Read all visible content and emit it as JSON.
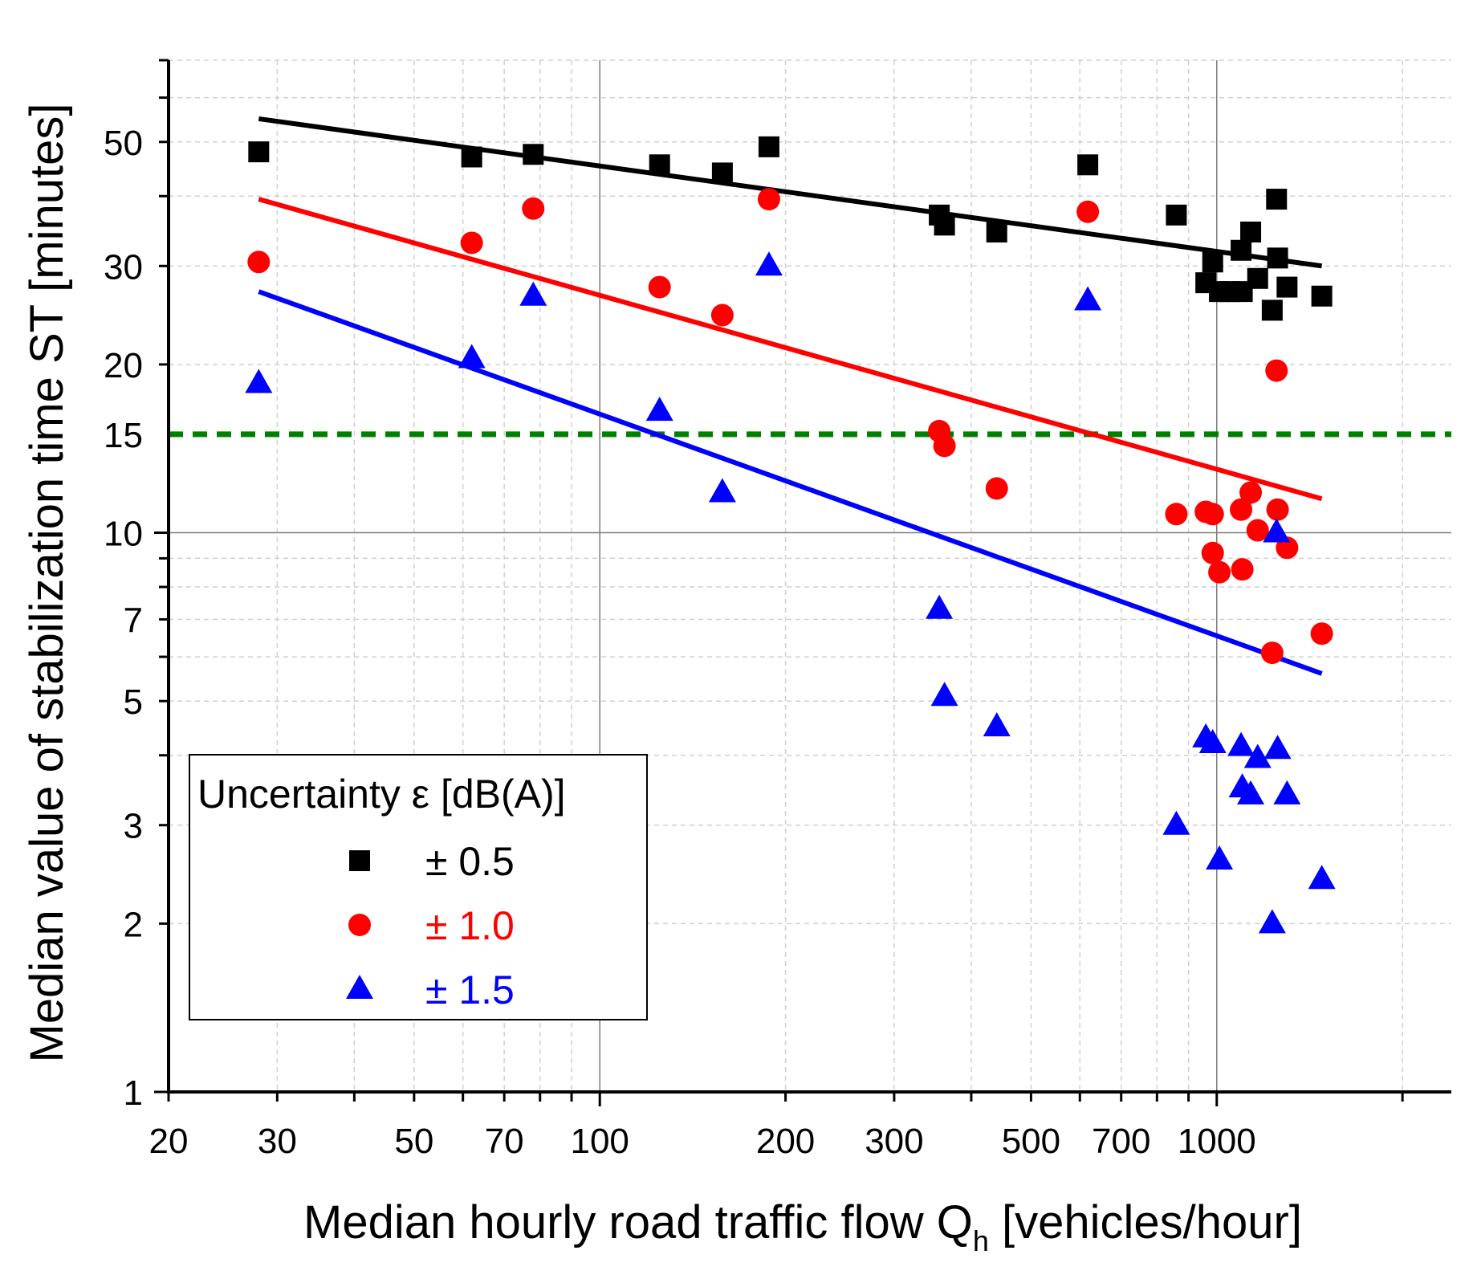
{
  "chart_data": {
    "type": "scatter",
    "xscale": "log",
    "yscale": "log",
    "xlim": [
      20,
      2400
    ],
    "ylim": [
      1,
      70
    ],
    "xlabel": "Median hourly road traffic flow Q",
    "xlabel_sub": "h",
    "xlabel_suffix": " [vehicles/hour]",
    "ylabel": "Median value of stabilization time ST [minutes]",
    "x_tick_labels": [
      "20",
      "30",
      "50",
      "70",
      "100",
      "200",
      "300",
      "500",
      "700",
      "1000"
    ],
    "y_tick_labels": [
      "1",
      "2",
      "3",
      "5",
      "7",
      "10",
      "20",
      "30",
      "50"
    ],
    "grid": true,
    "legend": {
      "title": "Uncertainty ε [dB(A)]",
      "position": "bottom-left"
    },
    "threshold": {
      "value": 15,
      "label": "15",
      "color": "#008000",
      "style": "dashed"
    },
    "series": [
      {
        "name": "± 0.5",
        "marker": "square",
        "color": "#000000",
        "points": [
          [
            28,
            48
          ],
          [
            62,
            47
          ],
          [
            78,
            47.5
          ],
          [
            125,
            45.5
          ],
          [
            158,
            44
          ],
          [
            188,
            49
          ],
          [
            355,
            37
          ],
          [
            362,
            35.5
          ],
          [
            440,
            34.5
          ],
          [
            618,
            45.5
          ],
          [
            860,
            37
          ],
          [
            960,
            28
          ],
          [
            985,
            30.5
          ],
          [
            1010,
            27
          ],
          [
            1050,
            27
          ],
          [
            1095,
            32
          ],
          [
            1100,
            27
          ],
          [
            1135,
            34.5
          ],
          [
            1165,
            28.5
          ],
          [
            1230,
            25
          ],
          [
            1250,
            39.5
          ],
          [
            1255,
            31
          ],
          [
            1300,
            27.5
          ],
          [
            1480,
            26.5
          ]
        ],
        "fit": [
          [
            28,
            55
          ],
          [
            1480,
            30
          ]
        ]
      },
      {
        "name": "± 1.0",
        "marker": "circle",
        "color": "#ff0000",
        "points": [
          [
            28,
            30.5
          ],
          [
            62,
            33
          ],
          [
            78,
            38
          ],
          [
            125,
            27.5
          ],
          [
            158,
            24.5
          ],
          [
            188,
            39.5
          ],
          [
            355,
            15.2
          ],
          [
            362,
            14.3
          ],
          [
            440,
            12
          ],
          [
            618,
            37.5
          ],
          [
            860,
            10.8
          ],
          [
            960,
            10.9
          ],
          [
            985,
            10.8
          ],
          [
            985,
            9.2
          ],
          [
            1010,
            8.5
          ],
          [
            1095,
            11
          ],
          [
            1100,
            8.6
          ],
          [
            1135,
            11.8
          ],
          [
            1165,
            10.1
          ],
          [
            1230,
            6.1
          ],
          [
            1250,
            19.5
          ],
          [
            1255,
            11
          ],
          [
            1300,
            9.4
          ],
          [
            1480,
            6.6
          ]
        ],
        "fit": [
          [
            28,
            39.5
          ],
          [
            1480,
            11.5
          ]
        ]
      },
      {
        "name": "± 1.5",
        "marker": "triangle",
        "color": "#0000ff",
        "points": [
          [
            28,
            18.5
          ],
          [
            62,
            20.5
          ],
          [
            78,
            26.5
          ],
          [
            125,
            16.5
          ],
          [
            158,
            11.8
          ],
          [
            188,
            30
          ],
          [
            355,
            7.3
          ],
          [
            362,
            5.1
          ],
          [
            440,
            4.5
          ],
          [
            618,
            26
          ],
          [
            860,
            3
          ],
          [
            960,
            4.3
          ],
          [
            985,
            4.2
          ],
          [
            1010,
            2.6
          ],
          [
            1095,
            4.15
          ],
          [
            1100,
            3.5
          ],
          [
            1135,
            3.4
          ],
          [
            1165,
            3.95
          ],
          [
            1230,
            2
          ],
          [
            1250,
            10
          ],
          [
            1255,
            4.1
          ],
          [
            1300,
            3.4
          ],
          [
            1480,
            2.4
          ]
        ],
        "fit": [
          [
            28,
            27
          ],
          [
            1480,
            5.6
          ]
        ]
      }
    ]
  }
}
